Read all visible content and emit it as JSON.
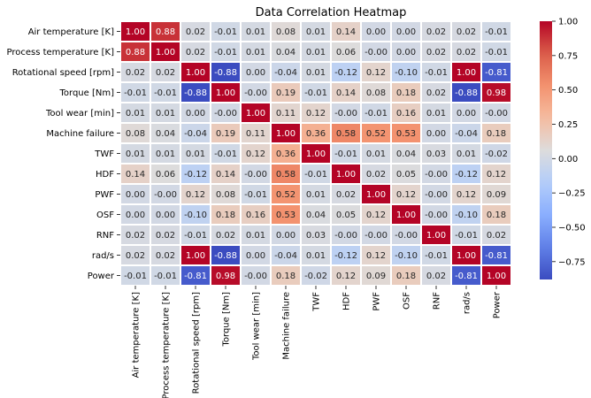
{
  "chart_data": {
    "type": "heatmap",
    "title": "Data Correlation Heatmap",
    "labels": [
      "Air temperature [K]",
      "Process temperature [K]",
      "Rotational speed [rpm]",
      "Torque [Nm]",
      "Tool wear [min]",
      "Machine failure",
      "TWF",
      "HDF",
      "PWF",
      "OSF",
      "RNF",
      "rad/s",
      "Power"
    ],
    "matrix": [
      [
        1.0,
        0.88,
        0.02,
        -0.01,
        0.01,
        0.08,
        0.01,
        0.14,
        0.0,
        0.0,
        0.02,
        0.02,
        -0.01
      ],
      [
        0.88,
        1.0,
        0.02,
        -0.01,
        0.01,
        0.04,
        0.01,
        0.06,
        -0.0,
        0.0,
        0.02,
        0.02,
        -0.01
      ],
      [
        0.02,
        0.02,
        1.0,
        -0.88,
        0.0,
        -0.04,
        0.01,
        -0.12,
        0.12,
        -0.1,
        -0.01,
        1.0,
        -0.81
      ],
      [
        -0.01,
        -0.01,
        -0.88,
        1.0,
        -0.0,
        0.19,
        -0.01,
        0.14,
        0.08,
        0.18,
        0.02,
        -0.88,
        0.98
      ],
      [
        0.01,
        0.01,
        0.0,
        -0.0,
        1.0,
        0.11,
        0.12,
        -0.0,
        -0.01,
        0.16,
        0.01,
        0.0,
        -0.0
      ],
      [
        0.08,
        0.04,
        -0.04,
        0.19,
        0.11,
        1.0,
        0.36,
        0.58,
        0.52,
        0.53,
        0.0,
        -0.04,
        0.18
      ],
      [
        0.01,
        0.01,
        0.01,
        -0.01,
        0.12,
        0.36,
        1.0,
        -0.01,
        0.01,
        0.04,
        0.03,
        0.01,
        -0.02
      ],
      [
        0.14,
        0.06,
        -0.12,
        0.14,
        -0.0,
        0.58,
        -0.01,
        1.0,
        0.02,
        0.05,
        -0.0,
        -0.12,
        0.12
      ],
      [
        0.0,
        -0.0,
        0.12,
        0.08,
        -0.01,
        0.52,
        0.01,
        0.02,
        1.0,
        0.12,
        -0.0,
        0.12,
        0.09
      ],
      [
        0.0,
        0.0,
        -0.1,
        0.18,
        0.16,
        0.53,
        0.04,
        0.05,
        0.12,
        1.0,
        -0.0,
        -0.1,
        0.18
      ],
      [
        0.02,
        0.02,
        -0.01,
        0.02,
        0.01,
        0.0,
        0.03,
        -0.0,
        -0.0,
        -0.0,
        1.0,
        -0.01,
        0.02
      ],
      [
        0.02,
        0.02,
        1.0,
        -0.88,
        0.0,
        -0.04,
        0.01,
        -0.12,
        0.12,
        -0.1,
        -0.01,
        1.0,
        -0.81
      ],
      [
        -0.01,
        -0.01,
        -0.81,
        0.98,
        -0.0,
        0.18,
        -0.02,
        0.12,
        0.09,
        0.18,
        0.02,
        -0.81,
        1.0
      ]
    ],
    "colormap": "coolwarm",
    "vmin": -0.88,
    "vmax": 1.0,
    "colorbar_ticks": [
      "1.00",
      "0.75",
      "0.50",
      "0.25",
      "0.00",
      "−0.25",
      "−0.50",
      "−0.75"
    ],
    "colorbar_tick_values": [
      1.0,
      0.75,
      0.5,
      0.25,
      0.0,
      -0.25,
      -0.5,
      -0.75
    ],
    "value_format": "2 decimals",
    "grid": false
  }
}
